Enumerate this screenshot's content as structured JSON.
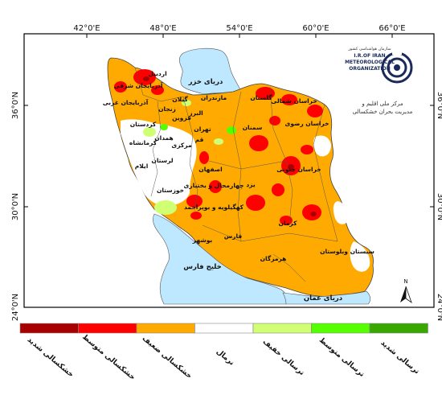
{
  "axes": {
    "top_ticks": [
      "42°0'E",
      "48°0'E",
      "54°0'E",
      "60°0'E",
      "66°0'E"
    ],
    "left_ticks": [
      "36°0'N",
      "30°0'N",
      "24°0'N"
    ],
    "right_ticks": [
      "36°0'N",
      "30°0'N",
      "24°0'N"
    ]
  },
  "seas": {
    "caspian": "دریای خزر",
    "persian_gulf": "خلیج فارس",
    "oman": "دریای عمان"
  },
  "provinces": [
    "اردبیل",
    "آذربایجان شرقی",
    "آذربایجان غربی",
    "گیلان",
    "مازندران",
    "گلستان",
    "خراسان شمالی",
    "خراسان رضوی",
    "سمنان",
    "تهران",
    "البرز",
    "قزوین",
    "زنجان",
    "قم",
    "کردستان",
    "همدان",
    "کرمانشاه",
    "مرکزی",
    "لرستان",
    "ایلام",
    "اصفهان",
    "خوزستان",
    "چهارمحال و بختیاری",
    "کهگیلویه و بویراحمد",
    "یزد",
    "خراسان جنوبی",
    "بوشهر",
    "فارس",
    "کرمان",
    "هرمزگان",
    "سیستان وبلوستان"
  ],
  "logo": {
    "org_persian": "سازمان هواشناسی کشور",
    "org_en_line1": "I.R.OF IRAN",
    "org_en_line2": "METEOROLOGICAL",
    "org_en_line3": "ORGANIZATION",
    "caption_line1": "مرکز ملی اقلیم و",
    "caption_line2": "مدیریت بحران خشکسالی"
  },
  "north_arrow": "N",
  "legend": [
    {
      "label": "خشکسالی شدید",
      "color": "#a80000"
    },
    {
      "label": "خشکسالی متوسط",
      "color": "#ff0000"
    },
    {
      "label": "خشکسالی ضعیف",
      "color": "#ffaa00"
    },
    {
      "label": "نرمال",
      "color": "#ffffff"
    },
    {
      "label": "ترسالی خفیف",
      "color": "#d1ff73"
    },
    {
      "label": "ترسالی متوسط",
      "color": "#55ff00"
    },
    {
      "label": "ترسالی شدید",
      "color": "#38a800"
    }
  ],
  "colors": {
    "sea": "#bee8ff",
    "frame": "#000000"
  }
}
